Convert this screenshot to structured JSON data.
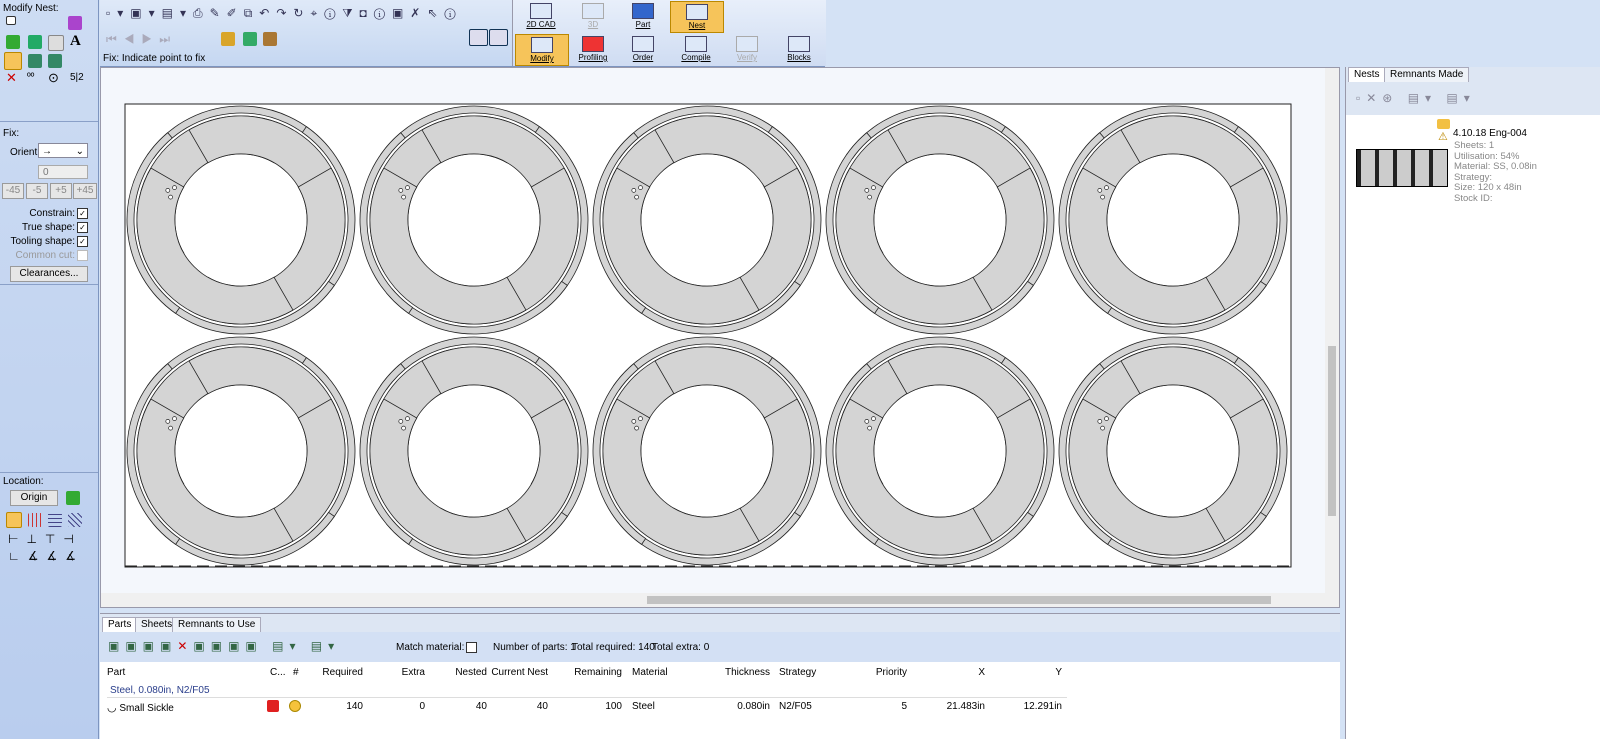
{
  "left_panel": {
    "modify_title": "Modify Nest:",
    "fix_title": "Fix:",
    "orient_label": "Orient:",
    "orient_value": "→",
    "angle_value": "0",
    "angle_buttons": [
      "-45",
      "-5",
      "+5",
      "+45"
    ],
    "checks": [
      "Constrain:",
      "True shape:",
      "Tooling shape:",
      "Common cut:"
    ],
    "clearances": "Clearances...",
    "location_title": "Location:",
    "origin": "Origin"
  },
  "mode_tabs": [
    "2D CAD",
    "3D",
    "Part",
    "Nest"
  ],
  "sub_tabs": [
    "Modify",
    "Profiling",
    "Order",
    "Compile",
    "Verify",
    "Blocks"
  ],
  "status": "Fix: Indicate point to fix",
  "nests_panel": {
    "tabs": [
      "Nests",
      "Remnants Made"
    ],
    "item": {
      "name": "4.10.18 Eng-004",
      "details": [
        "Sheets: 1",
        "Utilisation: 54%",
        "Material: SS, 0.08in",
        "Strategy:",
        "Size: 120 x 48in",
        "Stock ID:"
      ]
    }
  },
  "parts_panel": {
    "tabs": [
      "Parts",
      "Sheets",
      "Remnants to Use"
    ],
    "match_material": "Match material:",
    "summary": [
      "Number of parts: 1",
      "Total required: 140",
      "Total extra: 0"
    ],
    "headers": [
      "Part",
      "C...",
      "#",
      "Required",
      "Extra",
      "Nested",
      "Current Nest",
      "Remaining",
      "Material",
      "Thickness",
      "Strategy",
      "Priority",
      "X",
      "Y"
    ],
    "group": "Steel, 0.080in, N2/F05",
    "row": {
      "part": "Small Sickle",
      "required": 140,
      "extra": 0,
      "nested": 40,
      "current_nest": 40,
      "remaining": 100,
      "material": "Steel",
      "thickness": "0.080in",
      "strategy": "N2/F05",
      "priority": 5,
      "x": "21.483in",
      "y": "12.291in"
    }
  }
}
